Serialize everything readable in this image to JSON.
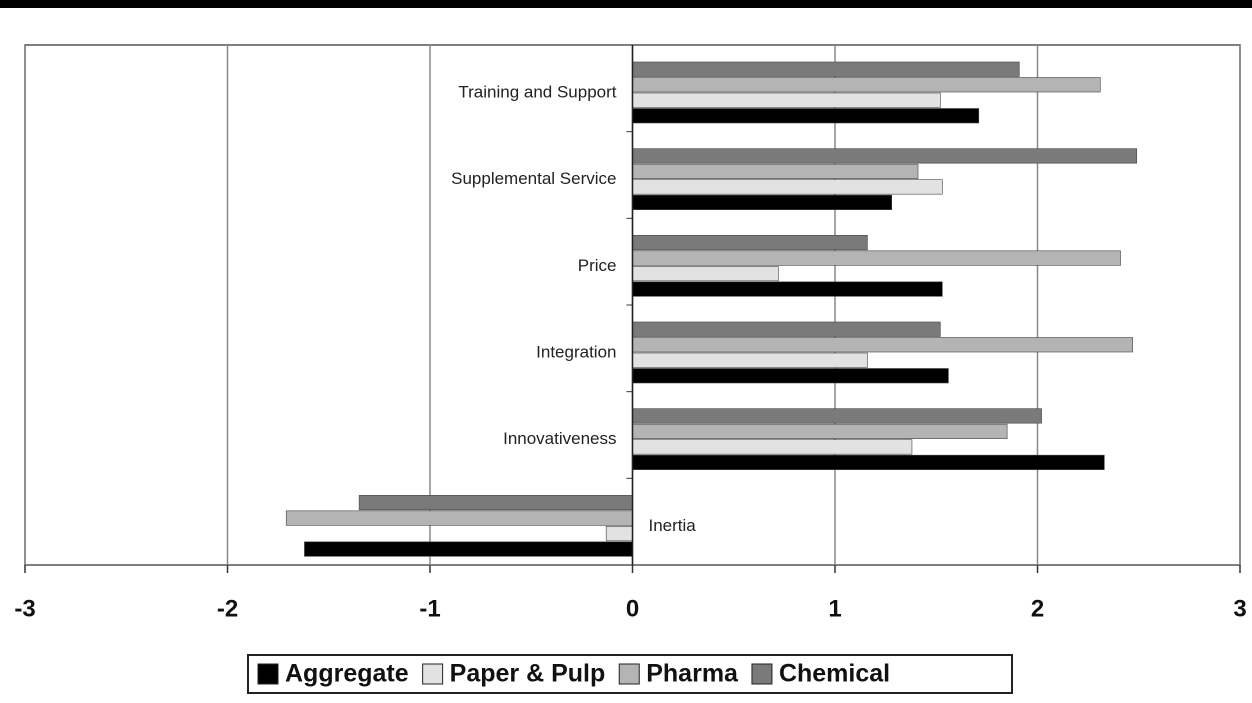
{
  "chart_data": {
    "type": "hbar",
    "categories": [
      "Training and Support",
      "Supplemental Service",
      "Price",
      "Integration",
      "Innovativeness",
      "Inertia"
    ],
    "series": [
      {
        "name": "Aggregate",
        "color": "#000000",
        "values": [
          1.71,
          1.28,
          1.53,
          1.56,
          2.33,
          -1.62
        ]
      },
      {
        "name": "Paper & Pulp",
        "color": "#e2e2e2",
        "values": [
          1.52,
          1.53,
          0.72,
          1.16,
          1.38,
          -0.13
        ]
      },
      {
        "name": "Pharma",
        "color": "#b4b4b4",
        "values": [
          2.31,
          1.41,
          2.41,
          2.47,
          1.85,
          -1.71
        ]
      },
      {
        "name": "Chemical",
        "color": "#7a7a7a",
        "values": [
          1.91,
          2.49,
          1.16,
          1.52,
          2.02,
          -1.35
        ]
      }
    ],
    "xlim": [
      -3,
      3
    ],
    "xticks": [
      -3,
      -2,
      -1,
      0,
      1,
      2,
      3
    ],
    "grid": true
  }
}
